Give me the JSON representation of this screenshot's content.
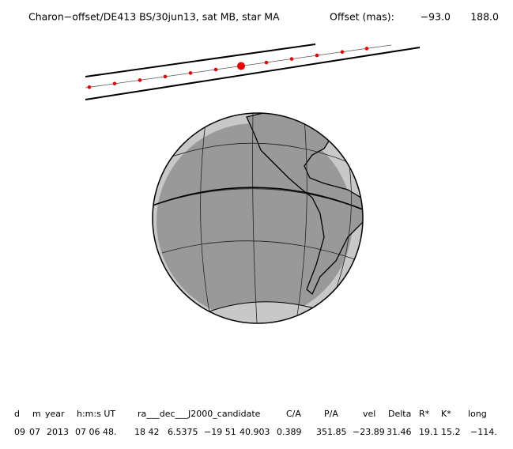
{
  "header": {
    "title": "Charon−offset/DE413 BS/30jun13, sat MB, star MA",
    "offset_label": "Offset (mas):",
    "offset_x": "−93.0",
    "offset_y": "188.0"
  },
  "table": {
    "columns": [
      "d",
      "m",
      "year",
      "h:m:s UT",
      "ra___dec___J2000_candidate",
      "C/A",
      "P/A",
      "vel",
      "Delta",
      "R*",
      "K*",
      "long"
    ],
    "row": [
      "09",
      "07",
      "2013",
      "07 06 48.",
      "18 42",
      "6.5375",
      "−19 51",
      "40.903",
      "0.389",
      "351.85",
      "−23.89",
      "31.46",
      "19.1",
      "15.2",
      "−114."
    ]
  }
}
